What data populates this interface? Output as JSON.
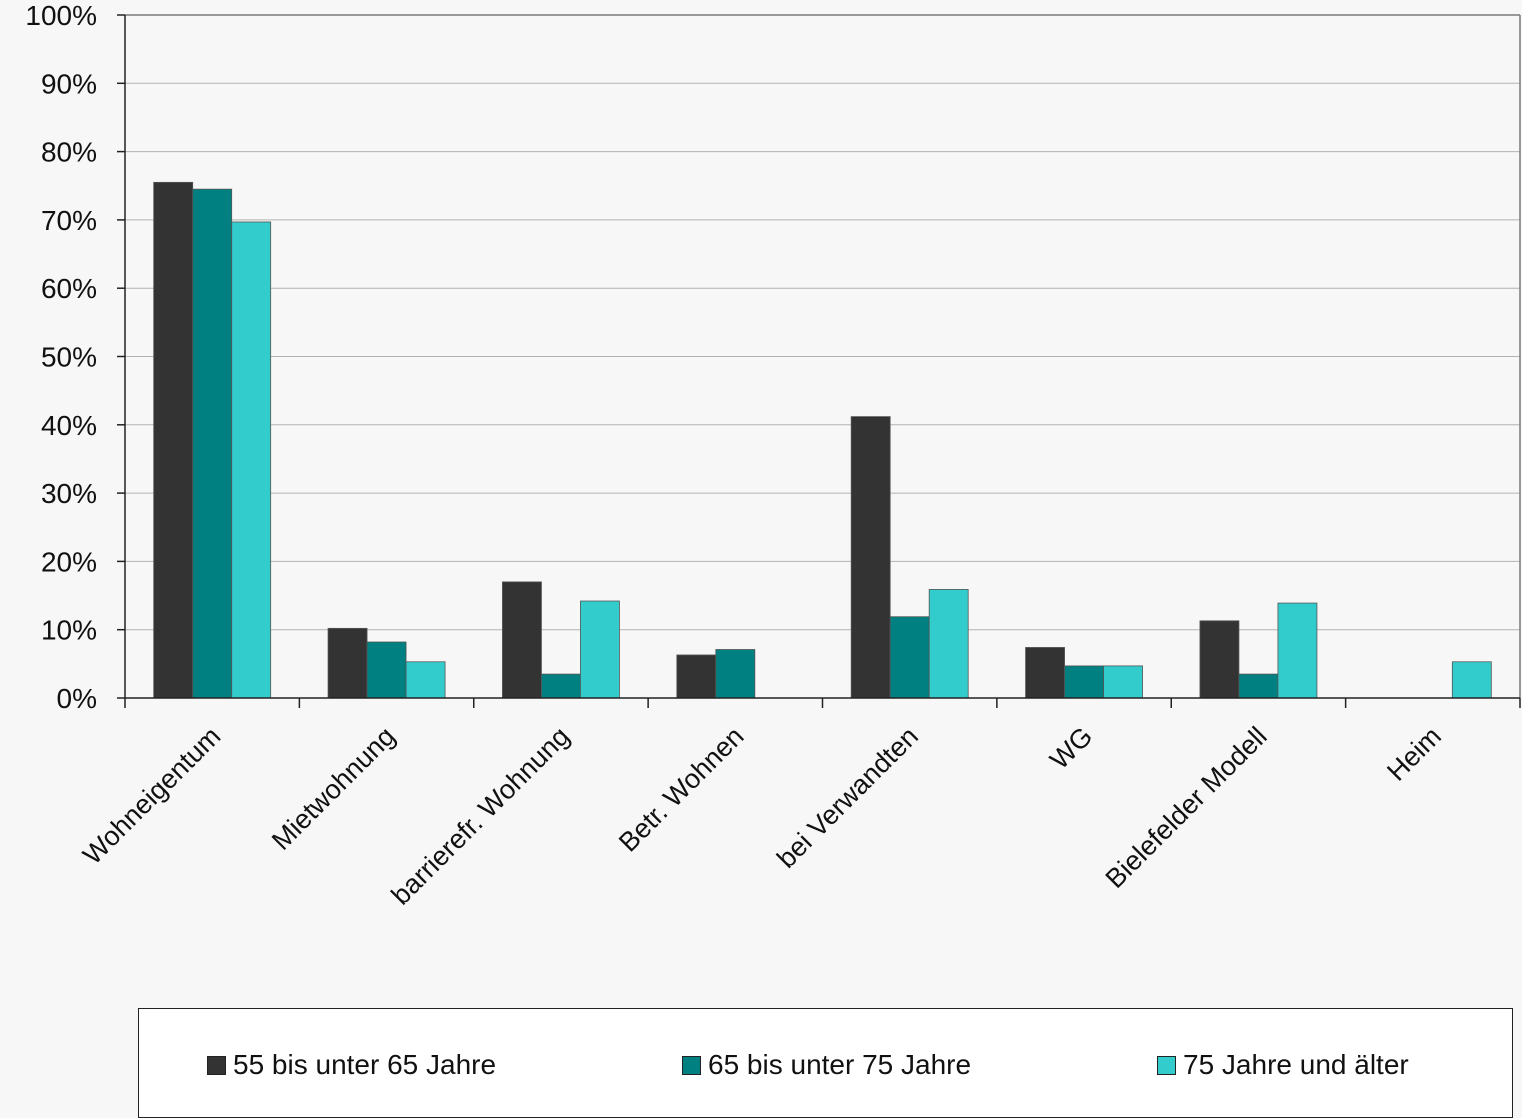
{
  "chart_data": {
    "type": "bar",
    "categories": [
      "Wohneigentum",
      "Mietwohnung",
      "barrierefr. Wohnung",
      "Betr. Wohnen",
      "bei Verwandten",
      "WG",
      "Bielefelder Modell",
      "Heim"
    ],
    "series": [
      {
        "name": "55 bis unter 65 Jahre",
        "color": "#333333",
        "values": [
          75.5,
          10.2,
          17.0,
          6.3,
          41.2,
          7.4,
          11.3,
          0
        ]
      },
      {
        "name": "65 bis unter 75 Jahre",
        "color": "#008080",
        "values": [
          74.5,
          8.2,
          3.5,
          7.1,
          11.9,
          4.7,
          3.5,
          0
        ]
      },
      {
        "name": "75 Jahre und älter",
        "color": "#33cccc",
        "values": [
          69.7,
          5.3,
          14.2,
          0,
          15.9,
          4.7,
          13.9,
          5.3
        ]
      }
    ],
    "yticks": [
      "0%",
      "10%",
      "20%",
      "30%",
      "40%",
      "50%",
      "60%",
      "70%",
      "80%",
      "90%",
      "100%"
    ],
    "ylim": [
      0,
      100
    ],
    "grid": true,
    "legend_position": "bottom"
  }
}
